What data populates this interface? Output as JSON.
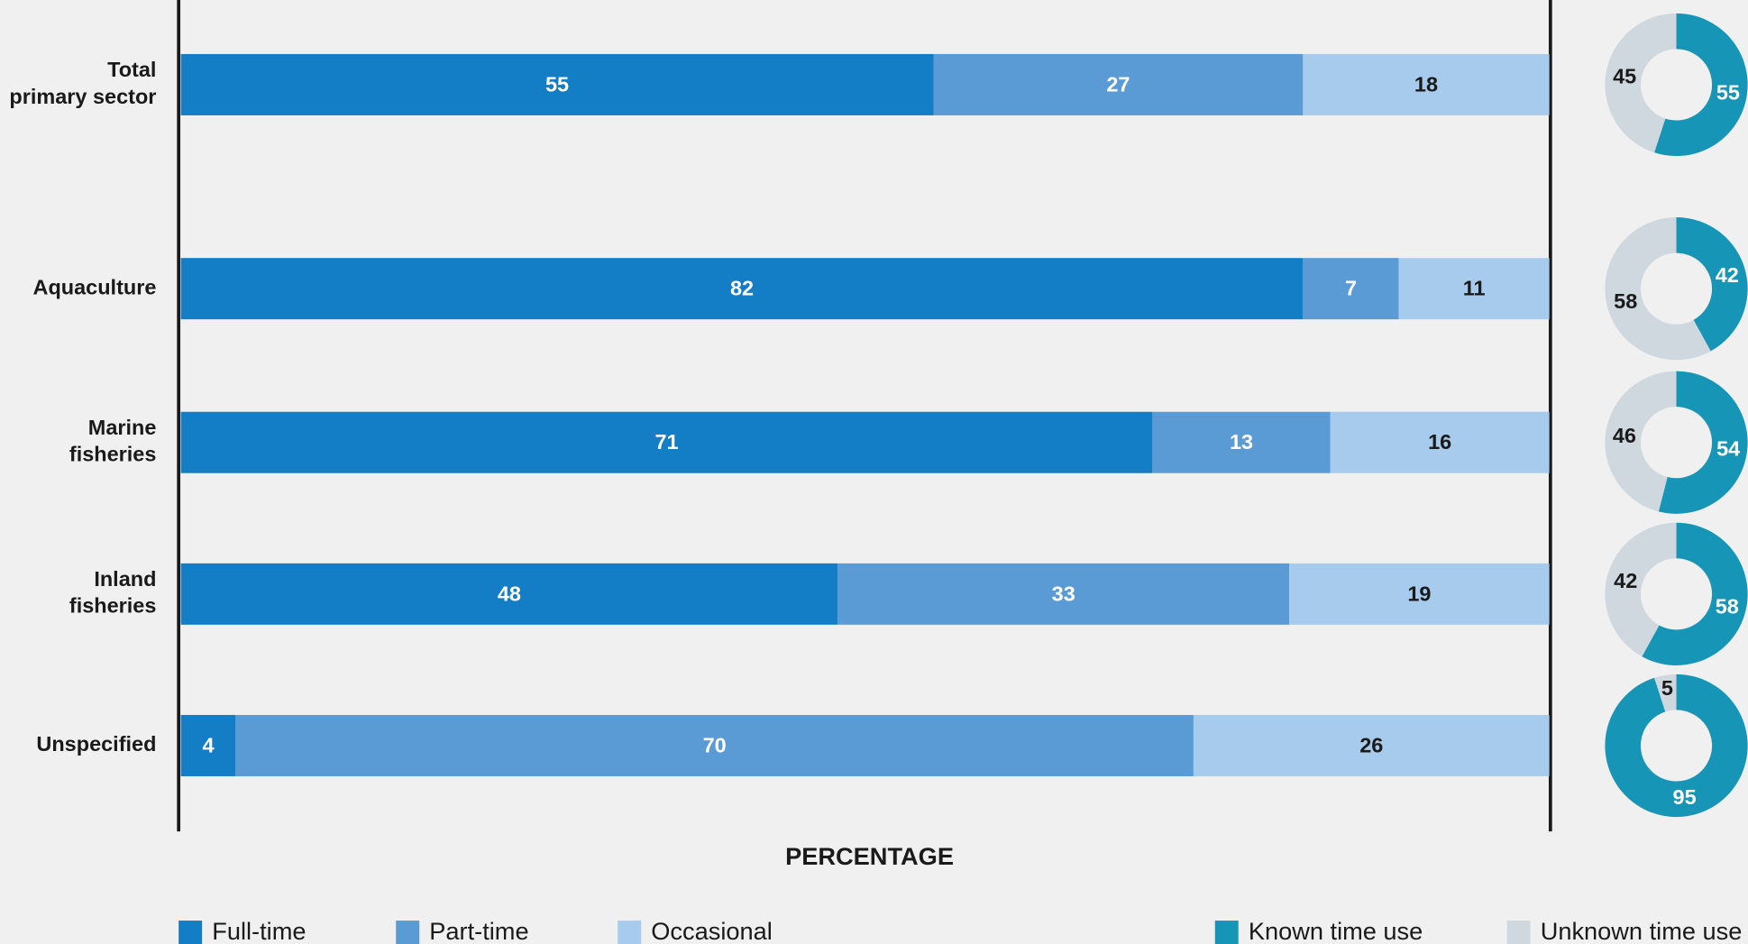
{
  "chart_data": [
    {
      "type": "stacked-barh",
      "xlabel": "PERCENTAGE",
      "categories": [
        "Total primary sector",
        "Aquaculture",
        "Marine fisheries",
        "Inland fisheries",
        "Unspecified"
      ],
      "series": [
        {
          "name": "Full-time",
          "color": "#137dc5",
          "values": [
            55,
            82,
            71,
            48,
            4
          ]
        },
        {
          "name": "Part-time",
          "color": "#5a9bd5",
          "values": [
            27,
            7,
            13,
            33,
            70
          ]
        },
        {
          "name": "Occasional",
          "color": "#a6cbec",
          "values": [
            18,
            11,
            16,
            19,
            26
          ]
        }
      ],
      "xlim": [
        0,
        100
      ]
    },
    {
      "type": "donut",
      "series": [
        {
          "name": "Known time use",
          "color": "#1795b6",
          "values": [
            55,
            42,
            54,
            58,
            95
          ]
        },
        {
          "name": "Unknown time use",
          "color": "#cfd8de",
          "values": [
            45,
            58,
            46,
            42,
            5
          ]
        }
      ]
    }
  ]
}
